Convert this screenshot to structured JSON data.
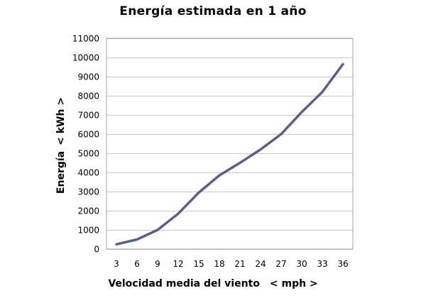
{
  "chart_data": {
    "type": "line",
    "title": "Energía estimada en 1 año",
    "xlabel": "Velocidad media del viento",
    "xlabel_unit": "< mph >",
    "ylabel": "Energía",
    "ylabel_unit": "< kWh >",
    "x": [
      3,
      6,
      9,
      12,
      15,
      18,
      21,
      24,
      27,
      30,
      33,
      36
    ],
    "x_tick_labels": [
      "3",
      "6",
      "9",
      "12",
      "15",
      "18",
      "21",
      "24",
      "27",
      "30",
      "33",
      "36"
    ],
    "series": [
      {
        "values": [
          250,
          500,
          1000,
          1850,
          2950,
          3850,
          4500,
          5200,
          6000,
          7150,
          8200,
          9650
        ]
      }
    ],
    "y_ticks": [
      0,
      1000,
      2000,
      3000,
      4000,
      5000,
      6000,
      7000,
      8000,
      9000,
      10000,
      11000
    ],
    "y_tick_labels": [
      "0",
      "1000",
      "2000",
      "3000",
      "4000",
      "5000",
      "6000",
      "7000",
      "8000",
      "9000",
      "10000",
      "11000"
    ],
    "ylim": [
      0,
      11000
    ],
    "grid": true,
    "legend": "none",
    "colors": {
      "line": "#5a5f8f",
      "grid": "#c8c8c8",
      "frame": "#a0a0a0"
    }
  }
}
